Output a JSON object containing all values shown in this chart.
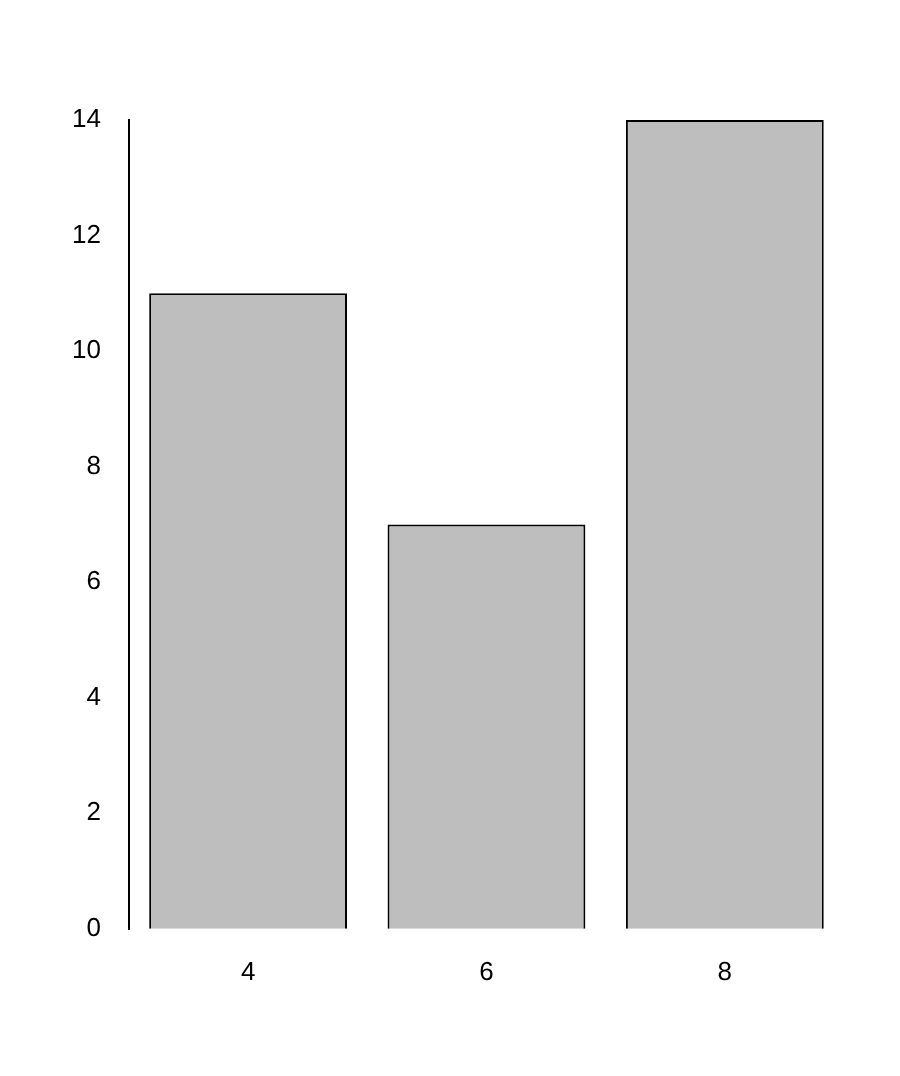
{
  "chart_data": {
    "type": "bar",
    "categories": [
      "4",
      "6",
      "8"
    ],
    "values": [
      11,
      7,
      14
    ],
    "color": "#bebebe",
    "ylim": [
      0,
      14
    ],
    "yticks": [
      0,
      2,
      4,
      6,
      8,
      10,
      12,
      14
    ],
    "grid": false,
    "legend": false
  }
}
